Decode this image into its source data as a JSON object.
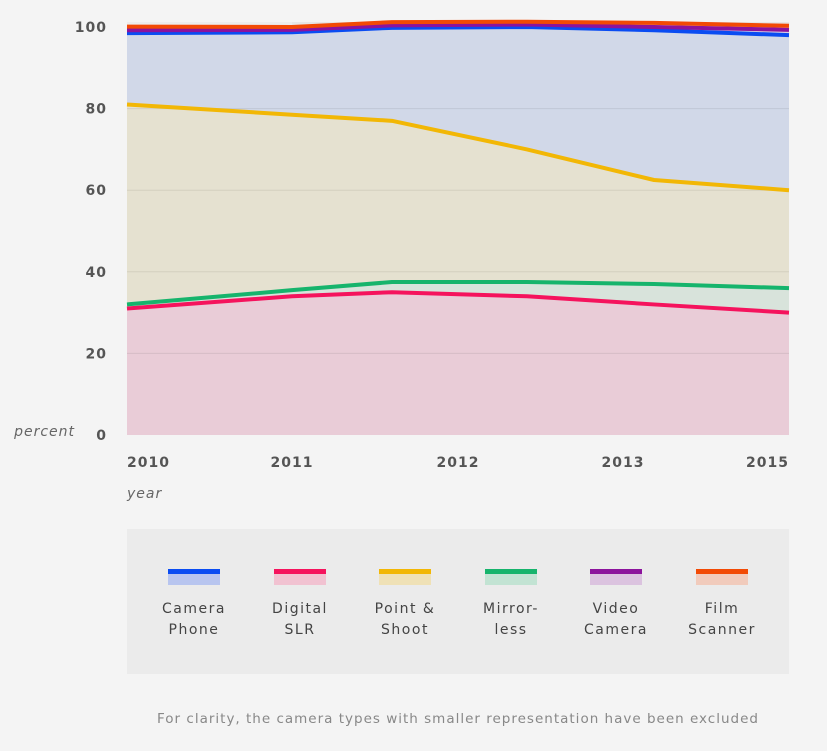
{
  "chart_data": {
    "type": "area",
    "x": [
      "2010",
      "2011",
      "2012",
      "2012b",
      "2013",
      "2015"
    ],
    "x_tick_labels": [
      "2010",
      "2011",
      "2012",
      "2013",
      "2015"
    ],
    "xlabel": "year",
    "ylabel": "percent",
    "yticks": [
      0,
      20,
      40,
      60,
      80,
      100
    ],
    "ylim": [
      0,
      100
    ],
    "stacked": true,
    "series": [
      {
        "name": "Digital SLR",
        "color": "#f5135d",
        "fill": "#e9c7d3",
        "cumulative": [
          31,
          34,
          35,
          34,
          32,
          30
        ]
      },
      {
        "name": "Mirror-less",
        "color": "#16b46c",
        "fill": "#d5e2d8",
        "cumulative": [
          32,
          35.5,
          37.5,
          37.5,
          37,
          36
        ]
      },
      {
        "name": "Point & Shoot",
        "color": "#f2b705",
        "fill": "#e4dfcb",
        "cumulative": [
          81,
          78.5,
          77,
          70,
          62.5,
          60
        ]
      },
      {
        "name": "Camera Phone",
        "color": "#0a4cf2",
        "fill": "#cdd5e8",
        "cumulative": [
          98.5,
          98.7,
          99.8,
          100,
          99.2,
          98
        ]
      },
      {
        "name": "Video Camera",
        "color": "#8c139c",
        "fill": "#d6c8e0",
        "cumulative": [
          99.2,
          99.3,
          100.4,
          100.6,
          100,
          99.3
        ]
      },
      {
        "name": "Film Scanner",
        "color": "#f24a05",
        "fill": "#ecd2cc",
        "cumulative": [
          100.1,
          100,
          101.2,
          101.3,
          101,
          100.3
        ]
      }
    ]
  },
  "legend": [
    {
      "label": "Camera\nPhone",
      "color": "#0a4cf2",
      "fill": "#8ea5f2",
      "icon": "camera-phone-swatch"
    },
    {
      "label": "Digital\nSLR",
      "color": "#f5135d",
      "fill": "#f5a0bc",
      "icon": "digital-slr-swatch"
    },
    {
      "label": "Point &\nShoot",
      "color": "#f2b705",
      "fill": "#f2d98a",
      "icon": "point-shoot-swatch"
    },
    {
      "label": "Mirror-\nless",
      "color": "#16b46c",
      "fill": "#a0dcbf",
      "icon": "mirrorless-swatch"
    },
    {
      "label": "Video\nCamera",
      "color": "#8c139c",
      "fill": "#cda3d6",
      "icon": "video-camera-swatch"
    },
    {
      "label": "Film\nScanner",
      "color": "#f24a05",
      "fill": "#f5b095",
      "icon": "film-scanner-swatch"
    }
  ],
  "footnote": "For clarity, the camera types with smaller representation have been excluded"
}
